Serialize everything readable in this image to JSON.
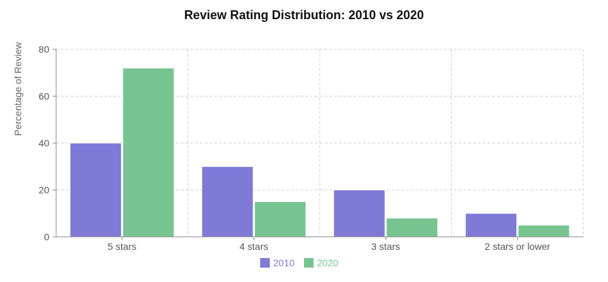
{
  "chart_data": {
    "type": "bar",
    "title": "Review Rating Distribution: 2010 vs 2020",
    "ylabel": "Percentage of Review",
    "xlabel": "",
    "categories": [
      "5 stars",
      "4 stars",
      "3 stars",
      "2 stars or lower"
    ],
    "series": [
      {
        "name": "2010",
        "values": [
          40,
          30,
          20,
          10
        ],
        "color": "#7f7ad6"
      },
      {
        "name": "2020",
        "values": [
          72,
          15,
          8,
          5
        ],
        "color": "#78c491"
      }
    ],
    "ylim": [
      0,
      80
    ],
    "yticks": [
      0,
      20,
      40,
      60,
      80
    ],
    "grid": true,
    "legend_position": "bottom"
  }
}
